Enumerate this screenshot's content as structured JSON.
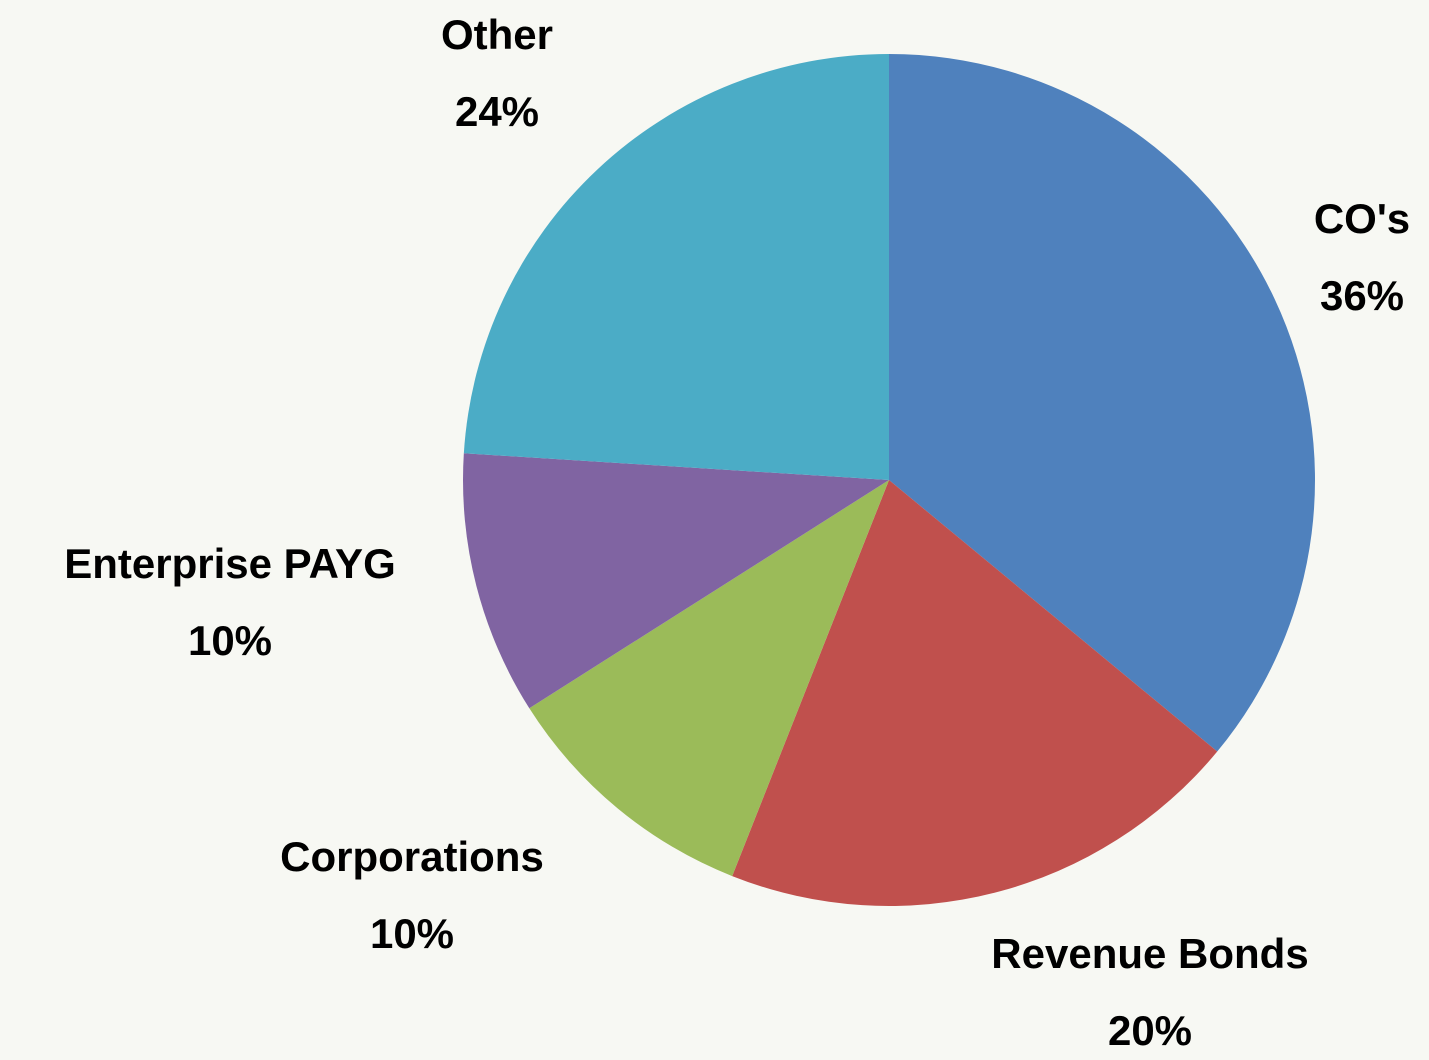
{
  "chart_data": {
    "type": "pie",
    "categories": [
      "CO's",
      "Revenue Bonds",
      "Corporations",
      "Enterprise PAYG",
      "Other"
    ],
    "values": [
      36,
      20,
      10,
      10,
      24
    ],
    "value_labels": [
      "36%",
      "20%",
      "10%",
      "10%",
      "24%"
    ],
    "colors": [
      "#4f81bd",
      "#c0504d",
      "#9bbb59",
      "#8064a2",
      "#4bacc6"
    ]
  }
}
